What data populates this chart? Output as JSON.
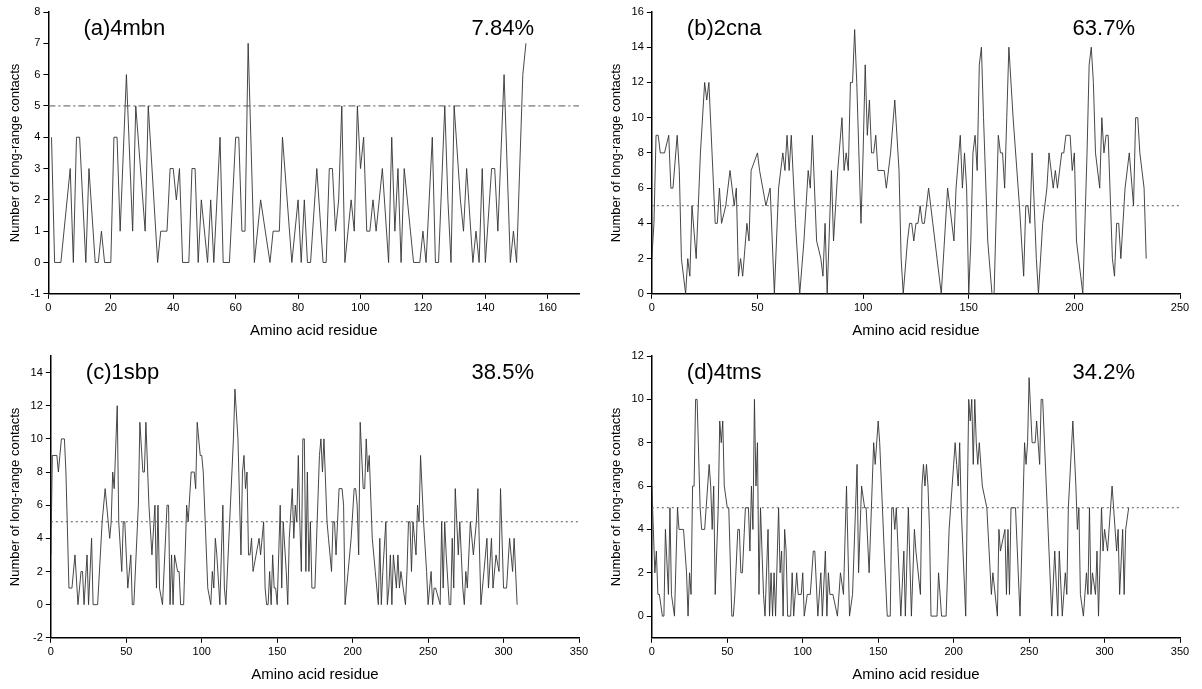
{
  "chart_data": [
    {
      "type": "line",
      "title": "(a)4mbn",
      "annotations": [
        "7.84%"
      ],
      "xlabel": "Amino acid residue",
      "ylabel": "Number of long-range contacts",
      "color": "#333333",
      "marker": "none",
      "line_style": "solid",
      "x": [
        1,
        2,
        4,
        7,
        8,
        9,
        10,
        12,
        13,
        15,
        16,
        17,
        18,
        20,
        21,
        22,
        23,
        25,
        27,
        28,
        31,
        32,
        35,
        36,
        38,
        39,
        40,
        41,
        42,
        43,
        45,
        46,
        47,
        48,
        49,
        51,
        52,
        53,
        55,
        56,
        58,
        60,
        61,
        62,
        63,
        64,
        66,
        68,
        71,
        72,
        74,
        75,
        78,
        80,
        81,
        82,
        83,
        84,
        86,
        88,
        89,
        90,
        91,
        92,
        93,
        94,
        95,
        97,
        98,
        99,
        100,
        101,
        102,
        103,
        104,
        105,
        107,
        109,
        110,
        111,
        112,
        113,
        114,
        116,
        117,
        119,
        120,
        121,
        123,
        124,
        125,
        127,
        128,
        129,
        130,
        132,
        133,
        134,
        136,
        137,
        138,
        139,
        140,
        142,
        143,
        144,
        146,
        148,
        149,
        150,
        152,
        153
      ],
      "values": [
        4,
        0,
        0,
        3,
        0,
        4,
        4,
        0,
        3,
        0,
        0,
        1,
        0,
        0,
        4,
        4,
        1,
        6,
        1,
        5,
        1,
        5,
        0,
        1,
        1,
        3,
        3,
        2,
        3,
        0,
        0,
        3,
        3,
        0,
        2,
        0,
        2,
        0,
        4,
        0,
        0,
        4,
        4,
        1,
        1,
        7,
        0,
        2,
        0,
        1,
        1,
        4,
        0,
        2,
        0,
        2,
        0,
        0,
        3,
        0,
        0,
        3,
        3,
        1,
        2,
        5,
        0,
        2,
        1,
        5,
        3,
        4,
        1,
        1,
        2,
        1,
        3,
        0,
        4,
        1,
        3,
        0,
        3,
        1,
        0,
        0,
        1,
        0,
        4,
        0,
        0,
        5,
        2,
        0,
        5,
        2,
        1,
        3,
        0,
        1,
        0,
        3,
        0,
        3,
        3,
        1,
        6,
        0,
        1,
        0,
        6,
        7
      ],
      "xlim": [
        0,
        170
      ],
      "xticks": [
        0,
        20,
        40,
        60,
        80,
        100,
        120,
        140,
        160
      ],
      "ylim": [
        -1,
        8
      ],
      "yticks": [
        -1,
        0,
        1,
        2,
        3,
        4,
        5,
        6,
        7,
        8
      ],
      "ref_lines": [
        {
          "axis": "y",
          "value": 5,
          "color": "#555555",
          "line_style": "dashed"
        }
      ]
    },
    {
      "type": "line",
      "title": "(b)2cna",
      "annotations": [
        "63.7%"
      ],
      "xlabel": "Amino acid residue",
      "ylabel": "Number of long-range contacts",
      "color": "#333333",
      "marker": "none",
      "line_style": "solid",
      "x": [
        0,
        1,
        2,
        3,
        4,
        6,
        8,
        9,
        10,
        12,
        13,
        14,
        16,
        17,
        18,
        19,
        21,
        23,
        25,
        26,
        27,
        30,
        31,
        32,
        33,
        35,
        37,
        39,
        40,
        41,
        42,
        43,
        45,
        46,
        47,
        50,
        51,
        54,
        56,
        58,
        60,
        62,
        63,
        64,
        65,
        66,
        68,
        70,
        72,
        74,
        75,
        76,
        78,
        80,
        81,
        82,
        83,
        85,
        86,
        88,
        90,
        91,
        92,
        93,
        94,
        95,
        96,
        97,
        99,
        100,
        101,
        102,
        103,
        104,
        105,
        106,
        107,
        110,
        111,
        113,
        115,
        117,
        118,
        119,
        121,
        122,
        123,
        124,
        125,
        126,
        127,
        128,
        129,
        131,
        133,
        135,
        137,
        140,
        141,
        143,
        144,
        146,
        147,
        148,
        149,
        150,
        151,
        152,
        153,
        154,
        155,
        156,
        157,
        159,
        161,
        162,
        164,
        165,
        166,
        167,
        168,
        169,
        171,
        174,
        176,
        177,
        178,
        179,
        180,
        182,
        183,
        185,
        187,
        188,
        190,
        191,
        192,
        194,
        195,
        196,
        198,
        199,
        200,
        201,
        203,
        204,
        206,
        207,
        208,
        209,
        210,
        212,
        213,
        214,
        215,
        216,
        218,
        219,
        220,
        221,
        222,
        224,
        226,
        228,
        229,
        230,
        231,
        233,
        234
      ],
      "values": [
        2,
        4,
        9,
        9,
        8,
        8,
        9,
        6,
        6,
        9,
        7,
        2,
        0,
        2,
        1,
        5,
        2,
        8,
        12,
        11,
        12,
        4,
        4,
        6,
        4,
        5,
        7,
        5,
        6,
        1,
        2,
        1,
        4,
        3,
        7,
        8,
        7,
        5,
        6,
        0,
        6,
        8,
        7,
        9,
        7,
        9,
        4,
        0,
        3,
        7,
        6,
        9,
        3,
        2,
        1,
        4,
        0,
        7,
        3,
        7,
        10,
        7,
        8,
        7,
        12,
        12,
        15,
        12,
        4,
        8,
        13,
        9,
        11,
        8,
        8,
        9,
        7,
        7,
        6,
        8,
        11,
        7,
        2,
        0,
        3,
        4,
        4,
        3,
        4,
        4,
        5,
        4,
        4,
        6,
        4,
        2,
        0,
        6,
        5,
        3,
        6,
        9,
        6,
        8,
        6,
        0,
        3,
        8,
        9,
        7,
        13,
        14,
        10,
        3,
        0,
        0,
        9,
        8,
        8,
        6,
        10,
        14,
        10,
        5,
        1,
        5,
        5,
        4,
        8,
        2,
        0,
        4,
        6,
        8,
        6,
        7,
        6,
        8,
        8,
        9,
        9,
        7,
        8,
        3,
        1,
        0,
        8,
        13,
        14,
        12,
        8,
        6,
        10,
        8,
        9,
        9,
        2,
        1,
        4,
        4,
        2,
        6,
        8,
        5,
        10,
        10,
        8,
        6,
        2
      ],
      "xlim": [
        0,
        250
      ],
      "xticks": [
        0,
        50,
        100,
        150,
        200,
        250
      ],
      "ylim": [
        0,
        16
      ],
      "yticks": [
        0,
        2,
        4,
        6,
        8,
        10,
        12,
        14,
        16
      ],
      "ref_lines": [
        {
          "axis": "y",
          "value": 5,
          "color": "#555555",
          "line_style": "dotted"
        }
      ]
    },
    {
      "type": "line",
      "title": "(c)1sbp",
      "annotations": [
        "38.5%"
      ],
      "xlabel": "Amino acid residue",
      "ylabel": "Number of long-range contacts",
      "color": "#333333",
      "marker": "none",
      "line_style": "solid",
      "x": [
        0,
        1,
        4,
        5,
        6,
        7,
        9,
        10,
        12,
        14,
        16,
        18,
        20,
        21,
        22,
        24,
        25,
        27,
        28,
        31,
        34,
        36,
        39,
        40,
        41,
        42,
        44,
        45,
        47,
        48,
        49,
        51,
        53,
        54,
        55,
        58,
        59,
        61,
        62,
        63,
        65,
        67,
        69,
        70,
        71,
        72,
        74,
        77,
        78,
        79,
        80,
        81,
        82,
        84,
        85,
        86,
        88,
        90,
        91,
        93,
        95,
        96,
        97,
        99,
        100,
        101,
        104,
        106,
        107,
        108,
        109,
        110,
        112,
        114,
        115,
        116,
        119,
        121,
        122,
        124,
        126,
        127,
        128,
        129,
        130,
        131,
        132,
        133,
        134,
        136,
        138,
        139,
        141,
        142,
        143,
        144,
        145,
        146,
        147,
        148,
        149,
        150,
        152,
        153,
        154,
        156,
        157,
        158,
        160,
        161,
        162,
        163,
        164,
        165,
        166,
        167,
        168,
        169,
        170,
        171,
        172,
        173,
        175,
        178,
        179,
        180,
        181,
        183,
        184,
        186,
        187,
        188,
        189,
        191,
        193,
        194,
        195,
        197,
        199,
        201,
        202,
        203,
        204,
        205,
        207,
        208,
        209,
        210,
        211,
        213,
        215,
        217,
        218,
        219,
        220,
        222,
        223,
        224,
        225,
        226,
        227,
        229,
        230,
        231,
        232,
        235,
        236,
        237,
        238,
        239,
        240,
        241,
        242,
        243,
        244,
        245,
        247,
        249,
        250,
        252,
        253,
        254,
        255,
        258,
        259,
        260,
        261,
        262,
        264,
        265,
        266,
        267,
        268,
        270,
        271,
        273,
        274,
        275,
        276,
        278,
        280,
        282,
        283,
        285,
        287,
        289,
        290,
        292,
        293,
        295,
        297,
        298,
        300,
        302,
        304,
        306,
        307,
        309
      ],
      "values": [
        3,
        9,
        9,
        8,
        9,
        10,
        10,
        8,
        1,
        1,
        3,
        0,
        2,
        2,
        0,
        3,
        0,
        4,
        0,
        0,
        5,
        7,
        4,
        5,
        8,
        7,
        12,
        5,
        2,
        5,
        5,
        1,
        3,
        0,
        0,
        6,
        11,
        8,
        8,
        11,
        6,
        3,
        6,
        1,
        6,
        1,
        0,
        6,
        6,
        0,
        3,
        0,
        3,
        2,
        2,
        0,
        0,
        6,
        5,
        8,
        8,
        7,
        11,
        9,
        9,
        8,
        1,
        0,
        2,
        1,
        4,
        3,
        0,
        6,
        1,
        0,
        6,
        10,
        13,
        10,
        3,
        8,
        9,
        7,
        8,
        3,
        3,
        4,
        2,
        3,
        4,
        3,
        5,
        1,
        0,
        0,
        2,
        0,
        3,
        1,
        1,
        0,
        6,
        1,
        5,
        2,
        0,
        4,
        7,
        4,
        6,
        5,
        9,
        5,
        2,
        10,
        10,
        2,
        8,
        2,
        5,
        1,
        1,
        9,
        10,
        8,
        10,
        5,
        4,
        2,
        5,
        5,
        3,
        7,
        7,
        6,
        0,
        2,
        4,
        7,
        7,
        6,
        3,
        11,
        7,
        7,
        10,
        8,
        9,
        4,
        2,
        0,
        4,
        0,
        2,
        5,
        0,
        1,
        3,
        0,
        3,
        1,
        3,
        1,
        2,
        0,
        2,
        5,
        5,
        2,
        5,
        4,
        3,
        6,
        5,
        9,
        5,
        2,
        0,
        2,
        0,
        1,
        1,
        0,
        5,
        1,
        5,
        3,
        0,
        0,
        4,
        1,
        7,
        3,
        5,
        1,
        0,
        2,
        1,
        5,
        3,
        5,
        7,
        0,
        2,
        4,
        1,
        4,
        1,
        3,
        2,
        7,
        1,
        1,
        4,
        2,
        4,
        0
      ],
      "xlim": [
        0,
        350
      ],
      "xticks": [
        0,
        50,
        100,
        150,
        200,
        250,
        300,
        350
      ],
      "ylim": [
        -2,
        15
      ],
      "yticks": [
        -2,
        0,
        2,
        4,
        6,
        8,
        10,
        12,
        14
      ],
      "ref_lines": [
        {
          "axis": "y",
          "value": 5,
          "color": "#555555",
          "line_style": "dotted"
        }
      ]
    },
    {
      "type": "line",
      "title": "(d)4tms",
      "annotations": [
        "34.2%"
      ],
      "xlabel": "Amino acid residue",
      "ylabel": "Number of long-range contacts",
      "color": "#333333",
      "marker": "none",
      "line_style": "solid",
      "x": [
        0,
        1,
        2,
        3,
        4,
        5,
        7,
        8,
        9,
        11,
        12,
        13,
        15,
        17,
        18,
        21,
        23,
        24,
        25,
        26,
        27,
        28,
        29,
        30,
        32,
        33,
        35,
        36,
        38,
        39,
        40,
        41,
        42,
        44,
        45,
        46,
        47,
        48,
        50,
        51,
        53,
        54,
        55,
        57,
        58,
        59,
        60,
        62,
        64,
        65,
        66,
        67,
        68,
        69,
        70,
        71,
        72,
        74,
        75,
        77,
        78,
        79,
        80,
        81,
        82,
        84,
        85,
        86,
        87,
        88,
        89,
        90,
        92,
        93,
        94,
        96,
        97,
        99,
        100,
        101,
        103,
        105,
        107,
        108,
        110,
        112,
        113,
        115,
        116,
        117,
        118,
        120,
        123,
        125,
        127,
        129,
        131,
        133,
        136,
        137,
        139,
        141,
        142,
        144,
        147,
        148,
        150,
        151,
        154,
        156,
        158,
        159,
        160,
        161,
        162,
        165,
        167,
        168,
        170,
        172,
        174,
        175,
        178,
        179,
        180,
        181,
        182,
        183,
        184,
        185,
        189,
        190,
        192,
        195,
        197,
        200,
        201,
        202,
        203,
        204,
        205,
        208,
        210,
        211,
        212,
        213,
        214,
        215,
        216,
        217,
        219,
        222,
        225,
        226,
        229,
        230,
        231,
        234,
        235,
        236,
        237,
        238,
        241,
        244,
        247,
        248,
        249,
        250,
        252,
        254,
        255,
        257,
        258,
        259,
        262,
        265,
        267,
        269,
        270,
        272,
        274,
        275,
        276,
        279,
        281,
        282,
        283,
        284,
        286,
        288,
        289,
        290,
        291,
        292,
        294,
        295,
        296,
        298,
        299,
        300,
        302,
        303,
        305,
        308,
        309,
        310,
        312,
        313,
        314,
        316
      ],
      "values": [
        6,
        4,
        2,
        3,
        1,
        1,
        0,
        0,
        4,
        1,
        5,
        1,
        0,
        5,
        4,
        4,
        2,
        0,
        2,
        1,
        6,
        6,
        10,
        10,
        5,
        4,
        4,
        5,
        7,
        6,
        4,
        6,
        1,
        5,
        9,
        8,
        9,
        6,
        5,
        5,
        0,
        0,
        1,
        4,
        4,
        2,
        2,
        5,
        5,
        3,
        6,
        4,
        10,
        6,
        8,
        1,
        5,
        1,
        0,
        4,
        0,
        2,
        0,
        2,
        0,
        5,
        2,
        3,
        0,
        4,
        3,
        0,
        0,
        2,
        0,
        2,
        1,
        1,
        2,
        0,
        1,
        1,
        3,
        3,
        0,
        2,
        0,
        3,
        0,
        2,
        1,
        1,
        0,
        2,
        1,
        6,
        0,
        1,
        7,
        2,
        6,
        5,
        5,
        2,
        8,
        7,
        9,
        8,
        3,
        0,
        0,
        5,
        5,
        4,
        5,
        0,
        3,
        0,
        5,
        0,
        4,
        3,
        1,
        6,
        7,
        6,
        7,
        6,
        4,
        0,
        0,
        2,
        0,
        0,
        4,
        7,
        8,
        7,
        6,
        8,
        5,
        0,
        10,
        9,
        10,
        7,
        10,
        8,
        7,
        8,
        6,
        5,
        1,
        2,
        0,
        4,
        3,
        4,
        1,
        4,
        1,
        5,
        5,
        0,
        8,
        7,
        8,
        11,
        8,
        8,
        9,
        7,
        10,
        10,
        5,
        0,
        3,
        0,
        3,
        0,
        2,
        1,
        5,
        9,
        6,
        4,
        5,
        1,
        0,
        2,
        1,
        5,
        1,
        2,
        1,
        3,
        0,
        5,
        3,
        4,
        3,
        4,
        6,
        3,
        4,
        1,
        4,
        1,
        4,
        5
      ],
      "xlim": [
        0,
        350
      ],
      "xticks": [
        0,
        50,
        100,
        150,
        200,
        250,
        300,
        350
      ],
      "ylim": [
        -1,
        12
      ],
      "yticks": [
        0,
        2,
        4,
        6,
        8,
        10,
        12
      ],
      "ref_lines": [
        {
          "axis": "y",
          "value": 5,
          "color": "#555555",
          "line_style": "dotted"
        }
      ]
    }
  ]
}
